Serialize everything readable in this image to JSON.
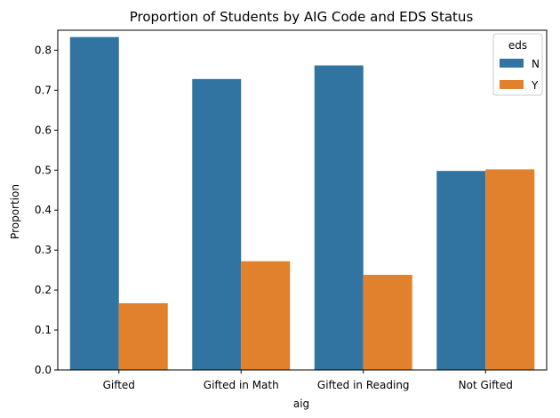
{
  "chart_data": {
    "type": "bar",
    "title": "Proportion of Students by AIG Code and EDS Status",
    "xlabel": "aig",
    "ylabel": "Proportion",
    "categories": [
      "Gifted",
      "Gifted in Math",
      "Gifted in Reading",
      "Not Gifted"
    ],
    "series": [
      {
        "name": "N",
        "values": [
          0.833,
          0.728,
          0.762,
          0.498
        ],
        "color": "#3274a1"
      },
      {
        "name": "Y",
        "values": [
          0.167,
          0.272,
          0.238,
          0.502
        ],
        "color": "#e1812c"
      }
    ],
    "ylim": [
      0,
      0.85
    ],
    "yticks": [
      0.0,
      0.1,
      0.2,
      0.3,
      0.4,
      0.5,
      0.6,
      0.7,
      0.8
    ],
    "ytick_labels": [
      "0.0",
      "0.1",
      "0.2",
      "0.3",
      "0.4",
      "0.5",
      "0.6",
      "0.7",
      "0.8"
    ],
    "legend": {
      "title": "eds",
      "placement": "top-right"
    },
    "grid": false
  }
}
